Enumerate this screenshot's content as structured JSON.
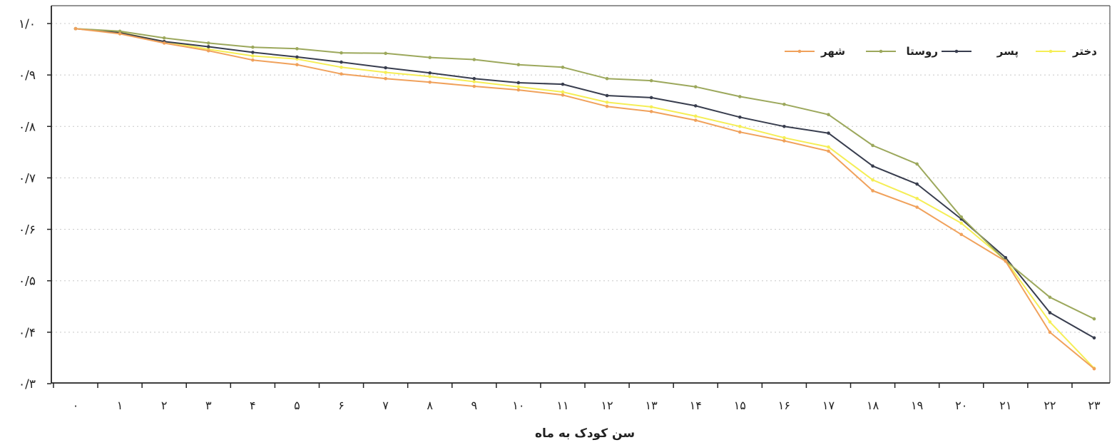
{
  "chart_data": {
    "type": "line",
    "title": "",
    "xlabel": "سن کودک به ماه",
    "ylabel": "",
    "ylim": [
      0.3,
      1.0
    ],
    "grid": true,
    "legend_position": "top-right",
    "x": [
      0,
      1,
      2,
      3,
      4,
      5,
      6,
      7,
      8,
      9,
      10,
      11,
      12,
      13,
      14,
      15,
      16,
      17,
      18,
      19,
      20,
      21,
      22,
      23
    ],
    "x_tick_labels": [
      "۰",
      "۱",
      "۲",
      "۳",
      "۴",
      "۵",
      "۶",
      "۷",
      "۸",
      "۹",
      "۱۰",
      "۱۱",
      "۱۲",
      "۱۳",
      "۱۴",
      "۱۵",
      "۱۶",
      "۱۷",
      "۱۸",
      "۱۹",
      "۲۰",
      "۲۱",
      "۲۲",
      "۲۳"
    ],
    "y_ticks": [
      0.3,
      0.4,
      0.5,
      0.6,
      0.7,
      0.8,
      0.9,
      1.0
    ],
    "y_tick_labels": [
      "۰/۳",
      "۰/۴",
      "۰/۵",
      "۰/۶",
      "۰/۷",
      "۰/۸",
      "۰/۹",
      "۱/۰"
    ],
    "series": [
      {
        "name": "دختر",
        "color": "#f5ee55",
        "values": [
          0.99,
          0.983,
          0.965,
          0.95,
          0.937,
          0.931,
          0.915,
          0.905,
          0.897,
          0.887,
          0.877,
          0.867,
          0.847,
          0.838,
          0.82,
          0.8,
          0.778,
          0.76,
          0.696,
          0.66,
          0.612,
          0.54,
          0.42,
          0.33
        ]
      },
      {
        "name": "پسر",
        "color": "#383d4e",
        "values": [
          0.99,
          0.982,
          0.965,
          0.955,
          0.944,
          0.935,
          0.925,
          0.914,
          0.904,
          0.893,
          0.885,
          0.882,
          0.86,
          0.856,
          0.84,
          0.818,
          0.8,
          0.787,
          0.723,
          0.688,
          0.62,
          0.545,
          0.438,
          0.389
        ]
      },
      {
        "name": "روستا",
        "color": "#9ca85c",
        "values": [
          0.99,
          0.985,
          0.972,
          0.962,
          0.954,
          0.951,
          0.943,
          0.942,
          0.934,
          0.93,
          0.92,
          0.915,
          0.893,
          0.889,
          0.877,
          0.858,
          0.843,
          0.823,
          0.763,
          0.727,
          0.624,
          0.539,
          0.468,
          0.426
        ]
      },
      {
        "name": "شهر",
        "color": "#f0a15b",
        "values": [
          0.99,
          0.98,
          0.962,
          0.947,
          0.929,
          0.92,
          0.902,
          0.893,
          0.886,
          0.878,
          0.871,
          0.861,
          0.839,
          0.829,
          0.812,
          0.789,
          0.772,
          0.752,
          0.675,
          0.643,
          0.59,
          0.538,
          0.4,
          0.329
        ]
      }
    ]
  }
}
